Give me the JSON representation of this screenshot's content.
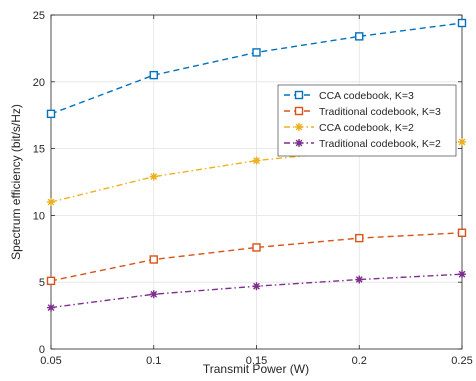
{
  "chart_data": {
    "type": "line",
    "xlabel": "Transmit Power (W)",
    "ylabel": "Spectrum efficiency (bit/s/Hz)",
    "x": [
      0.05,
      0.1,
      0.15,
      0.2,
      0.25
    ],
    "xlim": [
      0.05,
      0.25
    ],
    "ylim": [
      0,
      25
    ],
    "xticks": [
      "0.05",
      "0.1",
      "0.15",
      "0.2",
      "0.25"
    ],
    "yticks": [
      "0",
      "5",
      "10",
      "15",
      "20",
      "25"
    ],
    "grid": true,
    "legend_position": "top-right",
    "series": [
      {
        "name": "CCA codebook, K=3",
        "values": [
          17.6,
          20.5,
          22.2,
          23.4,
          24.4
        ],
        "color": "#0072BD",
        "marker": "square",
        "line_style": "dashed"
      },
      {
        "name": "Traditional codebook, K=3",
        "values": [
          5.1,
          6.7,
          7.6,
          8.3,
          8.7
        ],
        "color": "#D95319",
        "marker": "square",
        "line_style": "dashed"
      },
      {
        "name": "CCA codebook, K=2",
        "values": [
          11.0,
          12.9,
          14.1,
          14.9,
          15.5
        ],
        "color": "#EDB120",
        "marker": "asterisk",
        "line_style": "dash-dot"
      },
      {
        "name": "Traditional codebook, K=2",
        "values": [
          3.1,
          4.1,
          4.7,
          5.2,
          5.6
        ],
        "color": "#7E2F8E",
        "marker": "asterisk",
        "line_style": "dash-dot"
      }
    ]
  }
}
